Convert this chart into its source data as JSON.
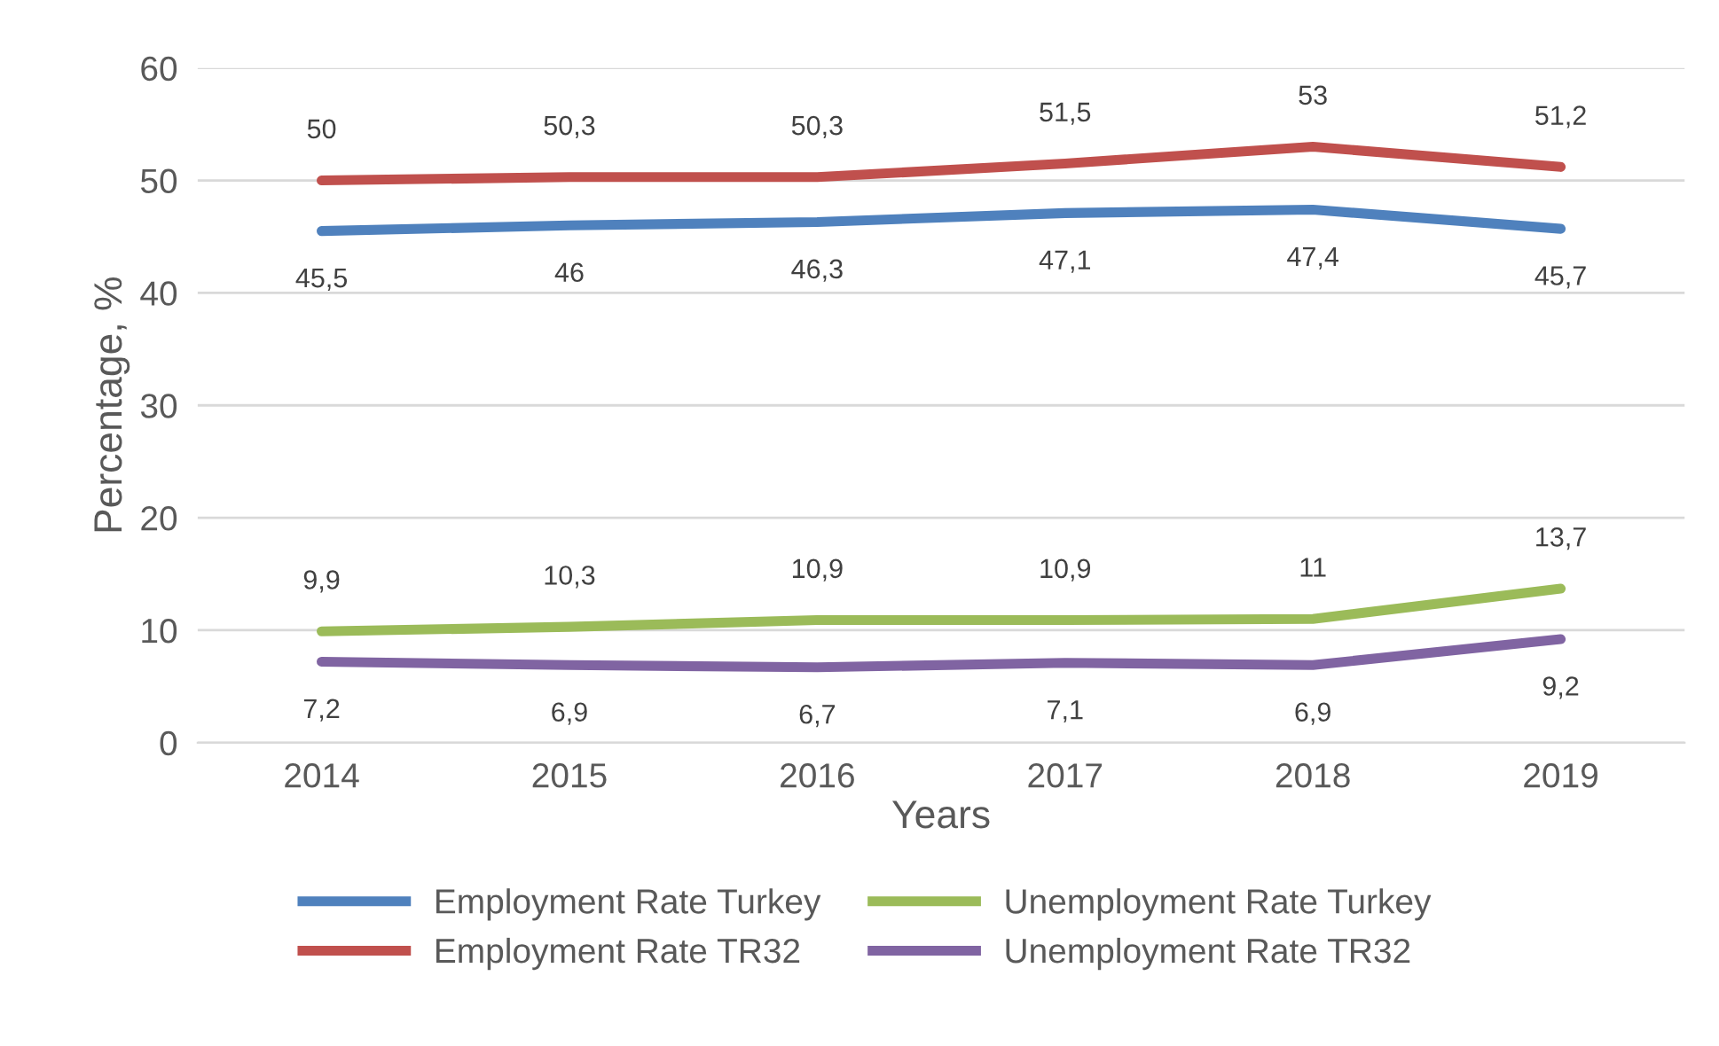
{
  "chart_data": {
    "type": "line",
    "xlabel": "Years",
    "ylabel": "Percentage, %",
    "categories": [
      "2014",
      "2015",
      "2016",
      "2017",
      "2018",
      "2019"
    ],
    "series": [
      {
        "name": "Employment Rate Turkey",
        "color": "#4f81bd",
        "values": [
          45.5,
          46,
          46.3,
          47.1,
          47.4,
          45.7
        ],
        "value_labels": [
          "45,5",
          "46",
          "46,3",
          "47,1",
          "47,4",
          "45,7"
        ]
      },
      {
        "name": "Employment Rate TR32",
        "color": "#c0504d",
        "values": [
          50,
          50.3,
          50.3,
          51.5,
          53,
          51.2
        ],
        "value_labels": [
          "50",
          "50,3",
          "50,3",
          "51,5",
          "53",
          "51,2"
        ]
      },
      {
        "name": "Unemployment Rate Turkey",
        "color": "#9bbb59",
        "values": [
          9.9,
          10.3,
          10.9,
          10.9,
          11,
          13.7
        ],
        "value_labels": [
          "9,9",
          "10,3",
          "10,9",
          "10,9",
          "11",
          "13,7"
        ]
      },
      {
        "name": "Unemployment Rate TR32",
        "color": "#8064a2",
        "values": [
          7.2,
          6.9,
          6.7,
          7.1,
          6.9,
          9.2
        ],
        "value_labels": [
          "7,2",
          "6,9",
          "6,7",
          "7,1",
          "6,9",
          "9,2"
        ]
      }
    ],
    "ylim": [
      0,
      60
    ],
    "yticks": [
      0,
      10,
      20,
      30,
      40,
      50,
      60
    ],
    "grid": "y",
    "legend": "bottom",
    "marker": "none",
    "line_style": "solid"
  }
}
